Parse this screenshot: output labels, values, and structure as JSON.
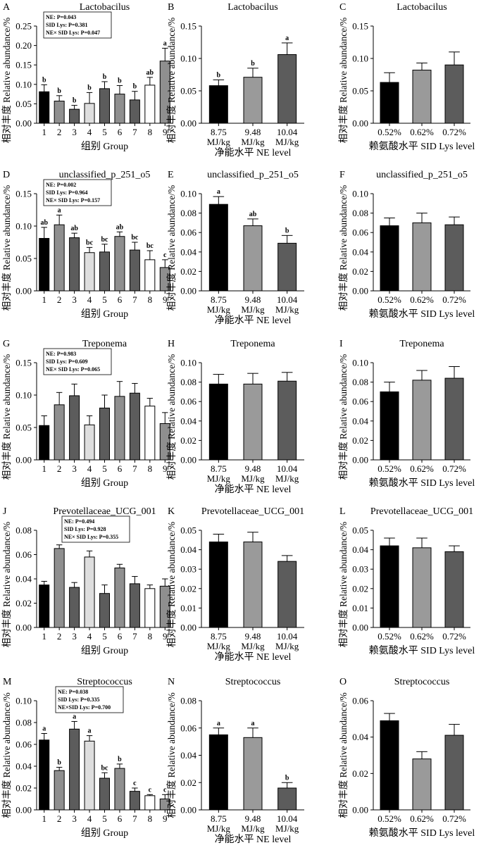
{
  "chart_data": [
    {
      "letter": "A",
      "type": "bar",
      "title": "Lactobacilus",
      "xlabel": "组别 Group",
      "ylabel": "相对丰度 Relative abundance/%",
      "ylim": [
        0,
        0.25
      ],
      "yticks": [
        0.0,
        0.05,
        0.1,
        0.15,
        0.2,
        0.25
      ],
      "ytick_labels": [
        "0.00",
        "0.05",
        "0.10",
        "0.15",
        "0.20",
        "0.25"
      ],
      "categories": [
        "1",
        "2",
        "3",
        "4",
        "5",
        "6",
        "7",
        "8",
        "9"
      ],
      "values": [
        0.081,
        0.057,
        0.036,
        0.051,
        0.089,
        0.075,
        0.06,
        0.098,
        0.16
      ],
      "errors": [
        0.018,
        0.014,
        0.01,
        0.028,
        0.018,
        0.022,
        0.022,
        0.02,
        0.033
      ],
      "sig": [
        "b",
        "b",
        "b",
        "b",
        "b",
        "b",
        "b",
        "ab",
        "a"
      ],
      "stats": [
        "NE: P=0.043",
        "SID Lys: P=0.381",
        "NE× SID Lys: P=0.047"
      ]
    },
    {
      "letter": "B",
      "type": "bar",
      "title": "Lactobacilus",
      "xlabel": "净能水平 NE level",
      "ylabel": "相对丰度 Relative abundance/%",
      "ylim": [
        0,
        0.15
      ],
      "yticks": [
        0,
        0.05,
        0.1,
        0.15
      ],
      "ytick_labels": [
        "0.00",
        "0.05",
        "0.10",
        "0.15"
      ],
      "categories": [
        "8.75 MJ/kg",
        "9.48 MJ/kg",
        "10.04 MJ/kg"
      ],
      "values": [
        0.058,
        0.071,
        0.106
      ],
      "errors": [
        0.009,
        0.014,
        0.018
      ],
      "sig": [
        "b",
        "b",
        "a"
      ],
      "stats": []
    },
    {
      "letter": "C",
      "type": "bar",
      "title": "Lactobacilus",
      "xlabel": "赖氨酸水平 SID Lys level",
      "ylabel": "相对丰度 Relative abundance/%",
      "ylim": [
        0,
        0.15
      ],
      "yticks": [
        0,
        0.05,
        0.1,
        0.15
      ],
      "ytick_labels": [
        "0.00",
        "0.05",
        "0.10",
        "0.15"
      ],
      "categories": [
        "0.52%",
        "0.62%",
        "0.72%"
      ],
      "values": [
        0.063,
        0.082,
        0.09
      ],
      "errors": [
        0.015,
        0.011,
        0.02
      ],
      "sig": [],
      "stats": []
    },
    {
      "letter": "D",
      "type": "bar",
      "title": "unclassified_p_251_o5",
      "xlabel": "组别 Group",
      "ylabel": "相对丰度 Relative abundance/%",
      "ylim": [
        0,
        0.15
      ],
      "yticks": [
        0,
        0.05,
        0.1,
        0.15
      ],
      "ytick_labels": [
        "0.00",
        "0.05",
        "0.10",
        "0.15"
      ],
      "categories": [
        "1",
        "2",
        "3",
        "4",
        "5",
        "6",
        "7",
        "8",
        "9"
      ],
      "values": [
        0.081,
        0.102,
        0.082,
        0.059,
        0.06,
        0.084,
        0.063,
        0.048,
        0.036
      ],
      "errors": [
        0.017,
        0.015,
        0.007,
        0.008,
        0.012,
        0.007,
        0.012,
        0.014,
        0.012
      ],
      "sig": [
        "ab",
        "a",
        "ab",
        "bc",
        "bc",
        "ab",
        "bc",
        "bc",
        "c"
      ],
      "stats": [
        "NE: P=0.002",
        "SID Lys: P=0.964",
        "NE× SID Lys: P=0.157"
      ]
    },
    {
      "letter": "E",
      "type": "bar",
      "title": "unclassified_p_251_o5",
      "xlabel": "净能水平 NE level",
      "ylabel": "相对丰度 Relative abundance/%",
      "ylim": [
        0,
        0.1
      ],
      "yticks": [
        0,
        0.02,
        0.04,
        0.06,
        0.08,
        0.1
      ],
      "ytick_labels": [
        "0.00",
        "0.02",
        "0.04",
        "0.06",
        "0.08",
        "0.10"
      ],
      "categories": [
        "8.75 MJ/kg",
        "9.48 MJ/kg",
        "10.04 MJ/kg"
      ],
      "values": [
        0.089,
        0.067,
        0.049
      ],
      "errors": [
        0.008,
        0.007,
        0.008
      ],
      "sig": [
        "a",
        "ab",
        "b"
      ],
      "stats": []
    },
    {
      "letter": "F",
      "type": "bar",
      "title": "unclassified_p_251_o5",
      "xlabel": "赖氨酸水平 SID Lys level",
      "ylabel": "相对丰度 Relative abundance/%",
      "ylim": [
        0,
        0.1
      ],
      "yticks": [
        0,
        0.02,
        0.04,
        0.06,
        0.08,
        0.1
      ],
      "ytick_labels": [
        "0.00",
        "0.02",
        "0.04",
        "0.06",
        "0.08",
        "0.10"
      ],
      "categories": [
        "0.52%",
        "0.62%",
        "0.72%"
      ],
      "values": [
        0.067,
        0.07,
        0.068
      ],
      "errors": [
        0.008,
        0.01,
        0.008
      ],
      "sig": [],
      "stats": []
    },
    {
      "letter": "G",
      "type": "bar",
      "title": "Treponema",
      "xlabel": "组别 Group",
      "ylabel": "相对丰度 Relative abundance/%",
      "ylim": [
        0,
        0.15
      ],
      "yticks": [
        0,
        0.05,
        0.1,
        0.15
      ],
      "ytick_labels": [
        "0.00",
        "0.05",
        "0.10",
        "0.15"
      ],
      "categories": [
        "1",
        "2",
        "3",
        "4",
        "5",
        "6",
        "7",
        "8",
        "9"
      ],
      "values": [
        0.053,
        0.085,
        0.099,
        0.054,
        0.08,
        0.098,
        0.103,
        0.083,
        0.056
      ],
      "errors": [
        0.015,
        0.019,
        0.018,
        0.014,
        0.02,
        0.023,
        0.015,
        0.012,
        0.017
      ],
      "sig": [],
      "stats": [
        "NE: P=0.983",
        "SID Lys: P=0.609",
        "NE× SID Lys: P=0.065"
      ]
    },
    {
      "letter": "H",
      "type": "bar",
      "title": "Treponema",
      "xlabel": "净能水平 NE level",
      "ylabel": "相对丰度 Relative abundance/%",
      "ylim": [
        0,
        0.1
      ],
      "yticks": [
        0,
        0.02,
        0.04,
        0.06,
        0.08,
        0.1
      ],
      "ytick_labels": [
        "0.00",
        "0.02",
        "0.04",
        "0.06",
        "0.08",
        "0.10"
      ],
      "categories": [
        "8.75 MJ/kg",
        "9.48 MJ/kg",
        "10.04 MJ/kg"
      ],
      "values": [
        0.078,
        0.078,
        0.081
      ],
      "errors": [
        0.01,
        0.011,
        0.009
      ],
      "sig": [],
      "stats": []
    },
    {
      "letter": "I",
      "type": "bar",
      "title": "Treponema",
      "xlabel": "赖氨酸水平 SID Lys level",
      "ylabel": "相对丰度 Relative abundance/%",
      "ylim": [
        0,
        0.1
      ],
      "yticks": [
        0,
        0.02,
        0.04,
        0.06,
        0.08,
        0.1
      ],
      "ytick_labels": [
        "0.00",
        "0.02",
        "0.04",
        "0.06",
        "0.08",
        "0.10"
      ],
      "categories": [
        "0.52%",
        "0.62%",
        "0.72%"
      ],
      "values": [
        0.07,
        0.082,
        0.084
      ],
      "errors": [
        0.01,
        0.01,
        0.012
      ],
      "sig": [],
      "stats": []
    },
    {
      "letter": "J",
      "type": "bar",
      "title": "Prevotellaceae_UCG_001",
      "xlabel": "组别 Group",
      "ylabel": "相对丰度 Relative abundance/%",
      "ylim": [
        0,
        0.08
      ],
      "yticks": [
        0,
        0.02,
        0.04,
        0.06,
        0.08
      ],
      "ytick_labels": [
        "0.00",
        "0.02",
        "0.04",
        "0.06",
        "0.08"
      ],
      "categories": [
        "1",
        "2",
        "3",
        "4",
        "5",
        "6",
        "7",
        "8",
        "9"
      ],
      "values": [
        0.035,
        0.065,
        0.033,
        0.058,
        0.028,
        0.049,
        0.036,
        0.032,
        0.034
      ],
      "errors": [
        0.003,
        0.003,
        0.004,
        0.005,
        0.007,
        0.003,
        0.006,
        0.003,
        0.006
      ],
      "sig": [],
      "stats": [
        "NE: P=0.494",
        "SID Lys: P=0.928",
        "NE× SID Lys: P=0.355"
      ]
    },
    {
      "letter": "K",
      "type": "bar",
      "title": "Prevotellaceae_UCG_001",
      "xlabel": "净能水平 NE level",
      "ylabel": "相对丰度 Relative abundance/%",
      "ylim": [
        0,
        0.05
      ],
      "yticks": [
        0,
        0.01,
        0.02,
        0.03,
        0.04,
        0.05
      ],
      "ytick_labels": [
        "0.00",
        "0.01",
        "0.02",
        "0.03",
        "0.04",
        "0.05"
      ],
      "categories": [
        "8.75 MJ/kg",
        "9.48 MJ/kg",
        "10.04 MJ/kg"
      ],
      "values": [
        0.044,
        0.044,
        0.034
      ],
      "errors": [
        0.004,
        0.005,
        0.003
      ],
      "sig": [],
      "stats": []
    },
    {
      "letter": "L",
      "type": "bar",
      "title": "Prevotellaceae_UCG_001",
      "xlabel": "赖氨酸水平 SID Lys level",
      "ylabel": "相对丰度 Relative abundance/%",
      "ylim": [
        0,
        0.05
      ],
      "yticks": [
        0,
        0.01,
        0.02,
        0.03,
        0.04,
        0.05
      ],
      "ytick_labels": [
        "0.00",
        "0.01",
        "0.02",
        "0.03",
        "0.04",
        "0.05"
      ],
      "categories": [
        "0.52%",
        "0.62%",
        "0.72%"
      ],
      "values": [
        0.042,
        0.041,
        0.039
      ],
      "errors": [
        0.004,
        0.005,
        0.003
      ],
      "sig": [],
      "stats": []
    },
    {
      "letter": "M",
      "type": "bar",
      "title": "Streptococcus",
      "xlabel": "组别 Group",
      "ylabel": "相对丰度 Relative abundance/%",
      "ylim": [
        0,
        0.1
      ],
      "yticks": [
        0,
        0.02,
        0.04,
        0.06,
        0.08,
        0.1
      ],
      "ytick_labels": [
        "0.00",
        "0.02",
        "0.04",
        "0.06",
        "0.08",
        "0.10"
      ],
      "categories": [
        "1",
        "2",
        "3",
        "4",
        "5",
        "6",
        "7",
        "8",
        "9"
      ],
      "values": [
        0.064,
        0.036,
        0.074,
        0.063,
        0.029,
        0.038,
        0.017,
        0.013,
        0.01
      ],
      "errors": [
        0.006,
        0.003,
        0.007,
        0.005,
        0.005,
        0.004,
        0.003,
        0.001,
        0.004
      ],
      "sig": [
        "a",
        "b",
        "a",
        "a",
        "bc",
        "b",
        "c",
        "c",
        "c"
      ],
      "stats": [
        "NE: P=0.038",
        "SID Lys: P=0.335",
        "NE×SID Lys: P=0.700"
      ]
    },
    {
      "letter": "N",
      "type": "bar",
      "title": "Streptococcus",
      "xlabel": "净能水平 NE level",
      "ylabel": "相对丰度 Relative abundance/%",
      "ylim": [
        0,
        0.08
      ],
      "yticks": [
        0,
        0.02,
        0.04,
        0.06,
        0.08
      ],
      "ytick_labels": [
        "0.00",
        "0.02",
        "0.04",
        "0.06",
        "0.08"
      ],
      "categories": [
        "8.75 MJ/kg",
        "9.48 MJ/kg",
        "10.04 MJ/kg"
      ],
      "values": [
        0.055,
        0.053,
        0.016
      ],
      "errors": [
        0.005,
        0.007,
        0.004
      ],
      "sig": [
        "a",
        "a",
        "b"
      ],
      "stats": []
    },
    {
      "letter": "O",
      "type": "bar",
      "title": "Streptococcus",
      "xlabel": "赖氨酸水平 SID Lys level",
      "ylabel": "相对丰度 Relative abundance/%",
      "ylim": [
        0,
        0.06
      ],
      "yticks": [
        0,
        0.02,
        0.04,
        0.06
      ],
      "ytick_labels": [
        "0.00",
        "0.02",
        "0.04",
        "0.06"
      ],
      "categories": [
        "0.52%",
        "0.62%",
        "0.72%"
      ],
      "values": [
        0.049,
        0.028,
        0.041
      ],
      "errors": [
        0.004,
        0.004,
        0.006
      ],
      "sig": [],
      "stats": []
    }
  ],
  "colors": {
    "group9": [
      "#000000",
      "#8f8f8f",
      "#5c5c5c",
      "#dedede",
      "#5c5c5c",
      "#8f8f8f",
      "#5c5c5c",
      "#ffffff",
      "#8f8f8f"
    ],
    "group3": [
      "#000000",
      "#9a9a9a",
      "#5c5c5c"
    ]
  }
}
